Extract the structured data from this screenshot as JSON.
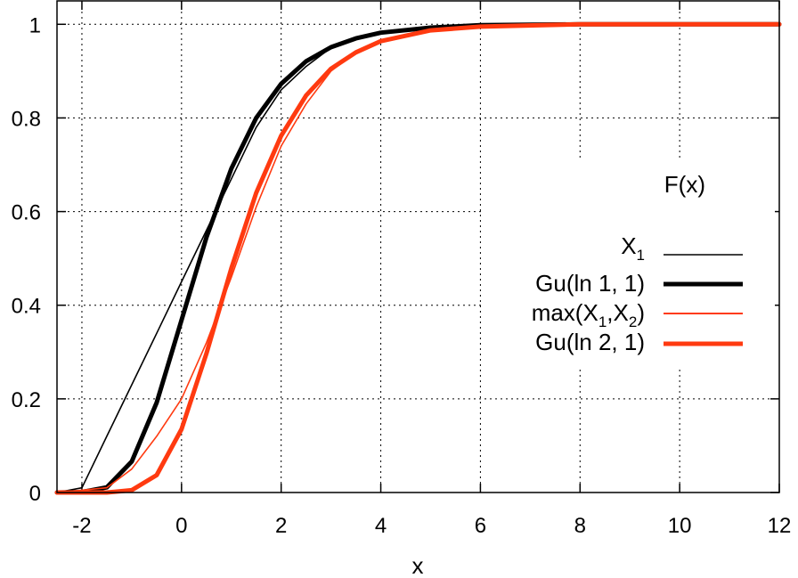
{
  "chart_data": {
    "type": "line",
    "xlabel": "x",
    "ylabel": "F(x)",
    "xlim": [
      -2.5,
      12
    ],
    "ylim": [
      0,
      1.05
    ],
    "grid": true,
    "legend_position": "right",
    "x_ticks": [
      "-2",
      "0",
      "2",
      "4",
      "6",
      "8",
      "10",
      "12"
    ],
    "x_tick_values": [
      -2,
      0,
      2,
      4,
      6,
      8,
      10,
      12
    ],
    "y_ticks": [
      "0",
      "0.2",
      "0.4",
      "0.6",
      "0.8",
      "1"
    ],
    "y_tick_values": [
      0,
      0.2,
      0.4,
      0.6,
      0.8,
      1
    ],
    "series": [
      {
        "name": "X",
        "name_sub": "1",
        "color": "#000000",
        "style": "thin",
        "x": [
          -2.5,
          -2.0,
          -1.5,
          -1.0,
          -0.5,
          0.0,
          0.5,
          1.0,
          1.5,
          2.0,
          2.5,
          3.0,
          3.5,
          4.0,
          5.0,
          6.0,
          8.0,
          12.0
        ],
        "y": [
          0.0,
          0.01,
          0.12,
          0.23,
          0.34,
          0.45,
          0.56,
          0.67,
          0.78,
          0.86,
          0.91,
          0.95,
          0.97,
          0.98,
          0.993,
          0.998,
          1.0,
          1.0
        ]
      },
      {
        "name": "Gu(ln 1, 1)",
        "color": "#000000",
        "style": "thick",
        "x": [
          -2.5,
          -2.0,
          -1.5,
          -1.0,
          -0.5,
          0.0,
          0.5,
          1.0,
          1.5,
          2.0,
          2.5,
          3.0,
          3.5,
          4.0,
          5.0,
          6.0,
          8.0,
          12.0
        ],
        "y": [
          0.0,
          0.001,
          0.011,
          0.066,
          0.192,
          0.368,
          0.545,
          0.692,
          0.8,
          0.873,
          0.921,
          0.951,
          0.97,
          0.982,
          0.993,
          0.998,
          1.0,
          1.0
        ]
      },
      {
        "name": "max(X",
        "name_sub": "1",
        "name_mid": ",X",
        "name_sub2": "2",
        "name_end": ")",
        "color": "#ff3a10",
        "style": "thin",
        "x": [
          -2.5,
          -1.5,
          -1.0,
          -0.5,
          0.0,
          0.5,
          1.0,
          1.5,
          2.0,
          2.5,
          3.0,
          3.5,
          4.0,
          5.0,
          6.0,
          8.0,
          12.0
        ],
        "y": [
          0.0,
          0.01,
          0.05,
          0.12,
          0.2,
          0.32,
          0.46,
          0.61,
          0.74,
          0.83,
          0.9,
          0.94,
          0.965,
          0.987,
          0.996,
          1.0,
          1.0
        ]
      },
      {
        "name": "Gu(ln 2, 1)",
        "color": "#ff3a10",
        "style": "thick",
        "x": [
          -2.5,
          -1.5,
          -1.0,
          -0.5,
          0.0,
          0.5,
          1.0,
          1.5,
          2.0,
          2.5,
          3.0,
          3.5,
          4.0,
          5.0,
          6.0,
          8.0,
          12.0
        ],
        "y": [
          0.0,
          0.0,
          0.005,
          0.037,
          0.135,
          0.297,
          0.479,
          0.64,
          0.762,
          0.848,
          0.905,
          0.94,
          0.964,
          0.987,
          0.995,
          1.0,
          1.0
        ]
      }
    ]
  }
}
